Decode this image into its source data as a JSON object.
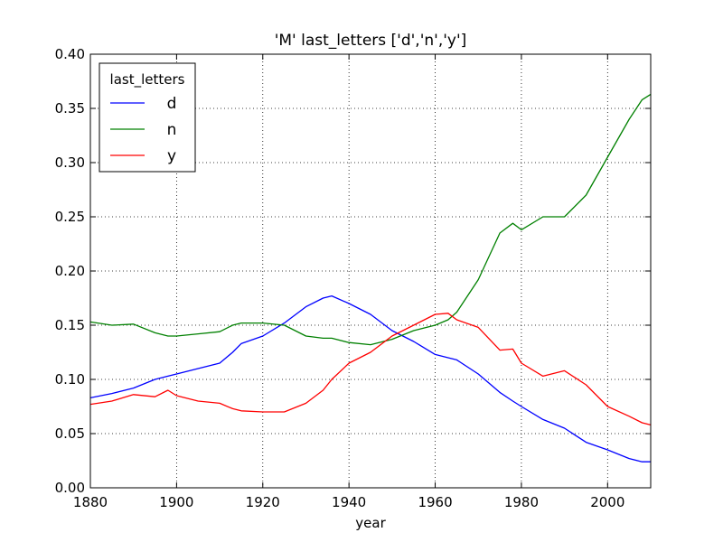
{
  "chart_data": {
    "type": "line",
    "title": "'M' last_letters ['d','n','y']",
    "xlabel": "year",
    "ylabel": "",
    "xlim": [
      1880,
      2010
    ],
    "ylim": [
      0.0,
      0.4
    ],
    "xticks": [
      1880,
      1900,
      1920,
      1940,
      1960,
      1980,
      2000
    ],
    "xtick_labels": [
      "1880",
      "1900",
      "1920",
      "1940",
      "1960",
      "1980",
      "2000"
    ],
    "yticks": [
      0.0,
      0.05,
      0.1,
      0.15,
      0.2,
      0.25,
      0.3,
      0.35,
      0.4
    ],
    "ytick_labels": [
      "0.00",
      "0.05",
      "0.10",
      "0.15",
      "0.20",
      "0.25",
      "0.30",
      "0.35",
      "0.40"
    ],
    "grid": true,
    "legend": {
      "title": "last_letters",
      "placement": "upper-left"
    },
    "x": [
      1880,
      1885,
      1890,
      1895,
      1898,
      1900,
      1905,
      1910,
      1913,
      1915,
      1920,
      1925,
      1930,
      1934,
      1936,
      1940,
      1945,
      1950,
      1955,
      1960,
      1963,
      1965,
      1970,
      1975,
      1978,
      1980,
      1985,
      1990,
      1995,
      2000,
      2005,
      2008,
      2010
    ],
    "series": [
      {
        "name": "d",
        "color": "#0000ff",
        "values": [
          0.083,
          0.087,
          0.092,
          0.1,
          0.103,
          0.105,
          0.11,
          0.115,
          0.125,
          0.133,
          0.14,
          0.152,
          0.167,
          0.175,
          0.177,
          0.17,
          0.16,
          0.145,
          0.135,
          0.123,
          0.12,
          0.118,
          0.105,
          0.088,
          0.08,
          0.075,
          0.063,
          0.055,
          0.042,
          0.035,
          0.027,
          0.024,
          0.024
        ]
      },
      {
        "name": "n",
        "color": "#008000",
        "values": [
          0.153,
          0.15,
          0.151,
          0.143,
          0.14,
          0.14,
          0.142,
          0.144,
          0.15,
          0.152,
          0.152,
          0.15,
          0.14,
          0.138,
          0.138,
          0.134,
          0.132,
          0.137,
          0.145,
          0.15,
          0.155,
          0.162,
          0.192,
          0.235,
          0.244,
          0.238,
          0.25,
          0.25,
          0.27,
          0.305,
          0.34,
          0.358,
          0.363
        ]
      },
      {
        "name": "y",
        "color": "#ff0000",
        "values": [
          0.077,
          0.08,
          0.086,
          0.084,
          0.09,
          0.085,
          0.08,
          0.078,
          0.073,
          0.071,
          0.07,
          0.07,
          0.078,
          0.09,
          0.1,
          0.115,
          0.125,
          0.14,
          0.15,
          0.16,
          0.161,
          0.155,
          0.148,
          0.127,
          0.128,
          0.115,
          0.103,
          0.108,
          0.095,
          0.075,
          0.066,
          0.06,
          0.058
        ]
      }
    ]
  }
}
